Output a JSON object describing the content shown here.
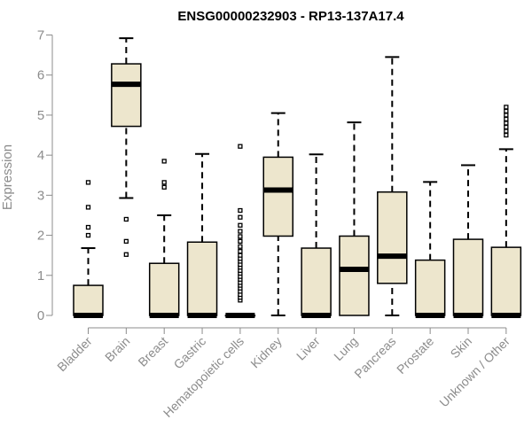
{
  "chart_data": {
    "type": "boxplot",
    "title": "ENSG00000232903 - RP13-137A17.4",
    "xlabel": "",
    "ylabel": "Expression",
    "ylim": [
      0,
      7
    ],
    "yticks": [
      0,
      1,
      2,
      3,
      4,
      5,
      6,
      7
    ],
    "grid": false,
    "box_color": "#ede6cd",
    "line_color": "#000000",
    "axis_color": "#8c8c8c",
    "categories": [
      "Bladder",
      "Brain",
      "Breast",
      "Gastric",
      "Hematopoietic cells",
      "Kidney",
      "Liver",
      "Lung",
      "Pancreas",
      "Prostate",
      "Skin",
      "Unknown / Other"
    ],
    "series": [
      {
        "name": "Bladder",
        "whisker_low": 0,
        "q1": 0,
        "median": 0,
        "q3": 0.75,
        "whisker_high": 1.68,
        "outliers": [
          2.0,
          2.2,
          2.7,
          3.32
        ]
      },
      {
        "name": "Brain",
        "whisker_low": 2.93,
        "q1": 4.72,
        "median": 5.77,
        "q3": 6.28,
        "whisker_high": 6.92,
        "outliers": [
          1.52,
          1.85,
          2.4
        ]
      },
      {
        "name": "Breast",
        "whisker_low": 0,
        "q1": 0,
        "median": 0,
        "q3": 1.3,
        "whisker_high": 2.5,
        "outliers": [
          3.2,
          3.32,
          3.85
        ]
      },
      {
        "name": "Gastric",
        "whisker_low": 0,
        "q1": 0,
        "median": 0,
        "q3": 1.83,
        "whisker_high": 4.03,
        "outliers": []
      },
      {
        "name": "Hematopoietic cells",
        "whisker_low": 0,
        "q1": 0,
        "median": 0,
        "q3": 0,
        "whisker_high": 0,
        "outliers": [
          0.38,
          0.45,
          0.52,
          0.6,
          0.68,
          0.75,
          0.82,
          0.9,
          0.97,
          1.05,
          1.12,
          1.2,
          1.27,
          1.35,
          1.42,
          1.5,
          1.6,
          1.72,
          1.85,
          1.97,
          2.1,
          2.25,
          2.45,
          2.62,
          4.22
        ]
      },
      {
        "name": "Kidney",
        "whisker_low": 0,
        "q1": 1.98,
        "median": 3.13,
        "q3": 3.95,
        "whisker_high": 5.05,
        "outliers": []
      },
      {
        "name": "Liver",
        "whisker_low": 0,
        "q1": 0,
        "median": 0,
        "q3": 1.68,
        "whisker_high": 4.02,
        "outliers": []
      },
      {
        "name": "Lung",
        "whisker_low": 0,
        "q1": 0,
        "median": 1.15,
        "q3": 1.98,
        "whisker_high": 4.82,
        "outliers": []
      },
      {
        "name": "Pancreas",
        "whisker_low": 0,
        "q1": 0.8,
        "median": 1.48,
        "q3": 3.08,
        "whisker_high": 6.45,
        "outliers": []
      },
      {
        "name": "Prostate",
        "whisker_low": 0,
        "q1": 0,
        "median": 0,
        "q3": 1.38,
        "whisker_high": 3.33,
        "outliers": []
      },
      {
        "name": "Skin",
        "whisker_low": 0,
        "q1": 0,
        "median": 0,
        "q3": 1.9,
        "whisker_high": 3.75,
        "outliers": []
      },
      {
        "name": "Unknown / Other",
        "whisker_low": 0,
        "q1": 0,
        "median": 0,
        "q3": 1.7,
        "whisker_high": 4.15,
        "outliers": [
          4.5,
          4.6,
          4.7,
          4.8,
          4.9,
          5.0,
          5.1,
          5.2
        ]
      }
    ]
  }
}
